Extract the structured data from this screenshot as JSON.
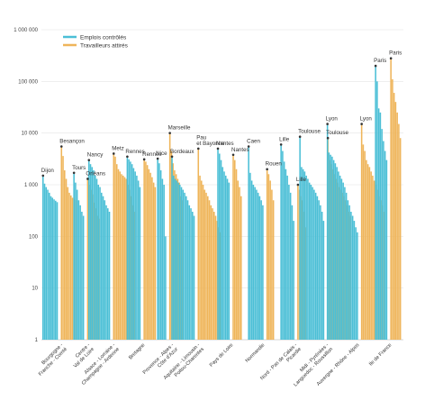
{
  "chart_data": {
    "type": "bar",
    "yscale": "log",
    "ylim": [
      1,
      1000000
    ],
    "yticks": [
      "1 000 000",
      "100 000",
      "10 000",
      "1 000",
      "100",
      "10",
      "1"
    ],
    "grid": true,
    "legend_position": "top-left",
    "colors": {
      "emplois": "#4bbfd6",
      "travailleurs": "#efb55a",
      "dot": "#333333"
    },
    "series": [
      {
        "key": "emplois",
        "name": "Emplois contrôlés"
      },
      {
        "key": "travailleurs",
        "name": "Travailleurs attirés"
      }
    ],
    "groups": [
      {
        "region": [
          "Bourgogne -",
          "Franche - Comté"
        ],
        "emplois": {
          "city": "Dijon",
          "values": [
            1500,
            1050,
            900,
            800,
            700,
            600,
            560,
            520,
            490,
            460
          ]
        },
        "travailleurs": {
          "city": "Besançon",
          "values": [
            5500,
            3600,
            1900,
            1300,
            900,
            700,
            620,
            560,
            520,
            500
          ]
        }
      },
      {
        "region": [
          "Centre -",
          "Val de Loire"
        ],
        "emplois": {
          "city": "Tours",
          "values": [
            1700,
            1100,
            800,
            500,
            400,
            300,
            250
          ]
        },
        "travailleurs": {
          "city": "Orléans",
          "values": [
            1300,
            1000,
            800,
            650,
            450,
            350,
            250,
            220
          ]
        }
      },
      {
        "region": [
          "Alsace - Lorraine -",
          "Champagne - Ardenne"
        ],
        "emplois": {
          "city": "Nancy",
          "values": [
            3000,
            2500,
            2200,
            1900,
            1500,
            1300,
            1000,
            900,
            700,
            600,
            500,
            400,
            350,
            300
          ]
        },
        "travailleurs": {
          "city": "Metz",
          "values": [
            4000,
            3500,
            2500,
            2000,
            1800,
            1600,
            1500,
            1400,
            1300,
            1000,
            800,
            600,
            400,
            300
          ]
        }
      },
      {
        "region": [
          "Bretagne"
        ],
        "emplois": {
          "city": "Rennes",
          "values": [
            3500,
            3100,
            2800,
            2500,
            2100,
            1800,
            1500,
            1200,
            900
          ]
        },
        "travailleurs": {
          "city": "Rennes",
          "values": [
            3100,
            2800,
            2400,
            2000,
            1700,
            1400,
            1100,
            900
          ]
        }
      },
      {
        "region": [
          "Provence - Alpes -",
          "Côte d'Azur"
        ],
        "emplois": {
          "city": "Nice",
          "values": [
            3200,
            2600,
            1900,
            1300,
            1000,
            100
          ]
        },
        "travailleurs": {
          "city": "Marseille",
          "values": [
            10000,
            4500,
            2600,
            1900,
            1600,
            1300,
            1100,
            600,
            500
          ]
        }
      },
      {
        "region": [
          "Aquitaine - Limousin -",
          "Poitou-Charentes"
        ],
        "emplois": {
          "city": "Bordeaux",
          "values": [
            3500,
            1500,
            1300,
            1200,
            1100,
            1000,
            900,
            800,
            700,
            600,
            500,
            400,
            350,
            300,
            250
          ]
        },
        "travailleurs": {
          "city": "Pau et Bayonne",
          "values": [
            5000,
            1500,
            1200,
            1000,
            800,
            700,
            600,
            500,
            400,
            350,
            300,
            250,
            200,
            150,
            120
          ]
        }
      },
      {
        "region": [
          "Pays de Loire"
        ],
        "emplois": {
          "city": "Nantes",
          "values": [
            5000,
            4000,
            3000,
            2200,
            1800,
            1500,
            1300,
            1100
          ]
        },
        "travailleurs": {
          "city": "Nantes",
          "values": [
            3800,
            3000,
            2000,
            1200,
            900,
            600
          ]
        }
      },
      {
        "region": [
          "Normandie"
        ],
        "emplois": {
          "city": "Caen",
          "values": [
            5500,
            1700,
            1200,
            1000,
            900,
            800,
            700,
            600,
            500,
            400
          ]
        },
        "travailleurs": {
          "city": "Rouen",
          "values": [
            2000,
            1600,
            1200,
            800,
            500
          ]
        }
      },
      {
        "region": [
          "Nord - Pas de Calais -",
          "Picardie"
        ],
        "emplois": {
          "city": "Lille",
          "values": [
            6000,
            4500,
            2800,
            2000,
            1500,
            1000,
            700,
            400,
            200
          ]
        },
        "travailleurs": {
          "city": "Lille",
          "values": [
            1000,
            800,
            600,
            500,
            300,
            150
          ]
        }
      },
      {
        "region": [
          "Midi - Pyrénées -",
          "Languedoc - Roussillon"
        ],
        "emplois": {
          "city": "Toulouse",
          "values": [
            8500,
            2200,
            2000,
            1800,
            1500,
            1300,
            1100,
            1000,
            900,
            800,
            700,
            600,
            500,
            400,
            300,
            200
          ]
        },
        "travailleurs": {
          "city": "Toulouse",
          "values": [
            8000,
            3000,
            2500,
            2000,
            1600,
            1300,
            1100,
            900,
            800,
            700,
            600,
            500,
            400,
            300,
            250
          ]
        }
      },
      {
        "region": [
          "Auvergne - Rhône - Alpes"
        ],
        "emplois": {
          "city": "Lyon",
          "values": [
            15000,
            4200,
            3800,
            3500,
            3000,
            2600,
            2200,
            1800,
            1500,
            1300,
            1100,
            900,
            700,
            500,
            400,
            300,
            250,
            200,
            150,
            120
          ]
        },
        "travailleurs": {
          "city": "Lyon",
          "values": [
            15000,
            6000,
            4500,
            3000,
            2500,
            2200,
            1800,
            1500,
            1200,
            1000,
            800,
            600,
            500,
            400,
            300
          ]
        }
      },
      {
        "region": [
          "Ile de France"
        ],
        "emplois": {
          "city": "Paris",
          "values": [
            200000,
            100000,
            30000,
            25000,
            12000,
            7000,
            4500,
            3000
          ]
        },
        "travailleurs": {
          "city": "Paris",
          "values": [
            280000,
            110000,
            60000,
            40000,
            25000,
            15000,
            8000
          ]
        }
      }
    ]
  }
}
